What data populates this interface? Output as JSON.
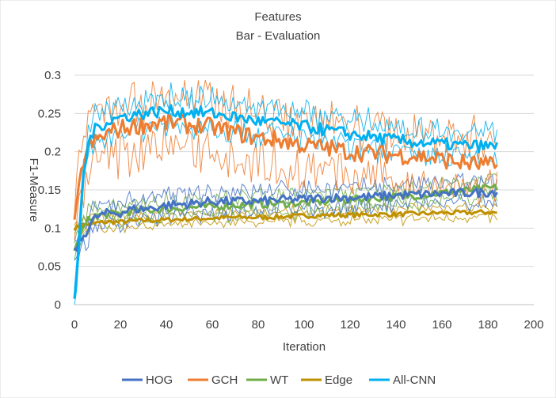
{
  "chart_data": {
    "type": "line",
    "title": "Features",
    "subtitle": "Bar - Evaluation",
    "xlabel": "Iteration",
    "ylabel": "F1-Measure",
    "xlim": [
      0,
      200
    ],
    "ylim": [
      0,
      0.3
    ],
    "xticks": [
      "0",
      "20",
      "40",
      "60",
      "80",
      "100",
      "120",
      "140",
      "160",
      "180",
      "200"
    ],
    "yticks": [
      "0",
      "0.05",
      "0.1",
      "0.15",
      "0.2",
      "0.25",
      "0.3"
    ],
    "grid": true,
    "legend_position": "bottom",
    "series": [
      {
        "name": "HOG",
        "color": "#4472C4",
        "x": [
          0,
          2,
          4,
          6,
          8,
          10,
          15,
          20,
          25,
          30,
          35,
          40,
          50,
          60,
          70,
          80,
          90,
          100,
          110,
          120,
          130,
          140,
          150,
          160,
          170,
          180,
          184
        ],
        "values": [
          0.07,
          0.08,
          0.09,
          0.1,
          0.11,
          0.115,
          0.12,
          0.12,
          0.125,
          0.125,
          0.127,
          0.13,
          0.132,
          0.135,
          0.135,
          0.135,
          0.137,
          0.138,
          0.14,
          0.14,
          0.141,
          0.143,
          0.144,
          0.145,
          0.146,
          0.147,
          0.148
        ]
      },
      {
        "name": "GCH",
        "color": "#ED7D31",
        "x": [
          0,
          2,
          4,
          6,
          8,
          10,
          15,
          20,
          25,
          30,
          35,
          40,
          50,
          60,
          70,
          80,
          90,
          100,
          110,
          120,
          130,
          140,
          150,
          160,
          170,
          180,
          184
        ],
        "values": [
          0.1,
          0.15,
          0.19,
          0.205,
          0.21,
          0.215,
          0.225,
          0.23,
          0.233,
          0.235,
          0.237,
          0.238,
          0.235,
          0.232,
          0.225,
          0.218,
          0.215,
          0.208,
          0.205,
          0.2,
          0.198,
          0.196,
          0.194,
          0.19,
          0.185,
          0.182,
          0.18
        ]
      },
      {
        "name": "WT",
        "color": "#70AD47",
        "x": [
          0,
          2,
          4,
          6,
          8,
          10,
          15,
          20,
          25,
          30,
          35,
          40,
          50,
          60,
          70,
          80,
          90,
          100,
          110,
          120,
          130,
          140,
          150,
          160,
          170,
          180,
          184
        ],
        "values": [
          0.07,
          0.085,
          0.1,
          0.11,
          0.115,
          0.117,
          0.118,
          0.12,
          0.122,
          0.123,
          0.124,
          0.125,
          0.127,
          0.128,
          0.13,
          0.131,
          0.132,
          0.133,
          0.135,
          0.137,
          0.139,
          0.141,
          0.143,
          0.146,
          0.149,
          0.152,
          0.153
        ]
      },
      {
        "name": "Edge",
        "color": "#BF9000",
        "x": [
          0,
          2,
          4,
          6,
          8,
          10,
          15,
          20,
          25,
          30,
          35,
          40,
          50,
          60,
          70,
          80,
          90,
          100,
          110,
          120,
          130,
          140,
          150,
          160,
          170,
          180,
          184
        ],
        "values": [
          0.1,
          0.102,
          0.104,
          0.105,
          0.106,
          0.107,
          0.108,
          0.108,
          0.109,
          0.11,
          0.11,
          0.111,
          0.112,
          0.113,
          0.114,
          0.114,
          0.115,
          0.116,
          0.117,
          0.117,
          0.118,
          0.118,
          0.119,
          0.12,
          0.12,
          0.121,
          0.12
        ]
      },
      {
        "name": "All-CNN",
        "color": "#00B0F0",
        "x": [
          0,
          2,
          4,
          6,
          8,
          10,
          15,
          20,
          25,
          30,
          35,
          40,
          50,
          60,
          70,
          80,
          90,
          100,
          110,
          120,
          130,
          140,
          150,
          160,
          170,
          180,
          184
        ],
        "values": [
          0.0,
          0.08,
          0.17,
          0.21,
          0.225,
          0.232,
          0.24,
          0.245,
          0.248,
          0.25,
          0.252,
          0.253,
          0.252,
          0.25,
          0.245,
          0.24,
          0.237,
          0.233,
          0.228,
          0.223,
          0.219,
          0.215,
          0.212,
          0.21,
          0.208,
          0.207,
          0.206
        ]
      }
    ]
  }
}
